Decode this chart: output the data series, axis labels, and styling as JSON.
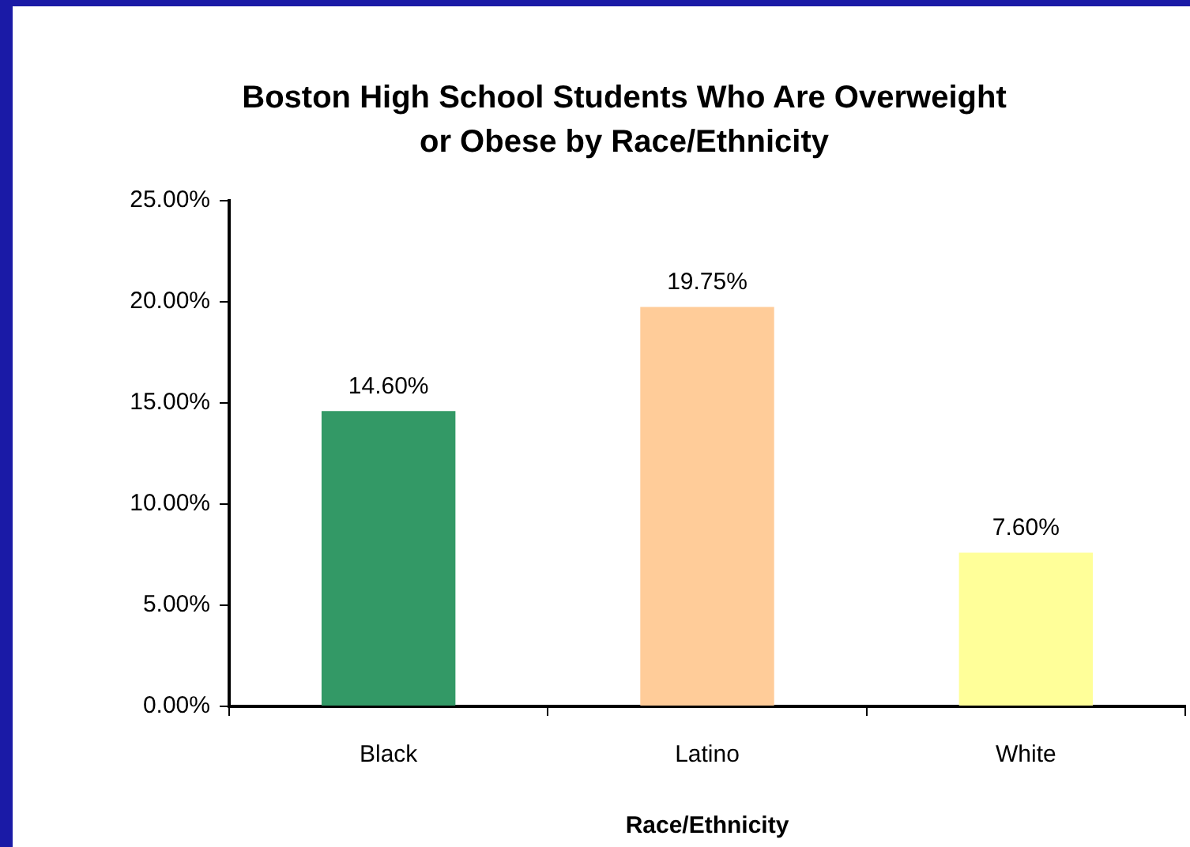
{
  "chart_data": {
    "type": "bar",
    "title": "Boston High School Students Who Are Overweight or Obese by Race/Ethnicity",
    "xlabel": "Race/Ethnicity",
    "categories": [
      "Black",
      "Latino",
      "White"
    ],
    "values": [
      14.6,
      19.75,
      7.6
    ],
    "colors": [
      "#339966",
      "#ffcc99",
      "#ffff99"
    ],
    "value_labels": [
      "14.60%",
      "19.75%",
      "7.60%"
    ],
    "ylim": [
      0,
      25
    ],
    "yticks": [
      {
        "value": 0,
        "label": "0.00%"
      },
      {
        "value": 5,
        "label": "5.00%"
      },
      {
        "value": 10,
        "label": "10.00%"
      },
      {
        "value": 15,
        "label": "15.00%"
      },
      {
        "value": 20,
        "label": "20.00%"
      },
      {
        "value": 25,
        "label": "25.00%"
      }
    ],
    "legend": false
  }
}
